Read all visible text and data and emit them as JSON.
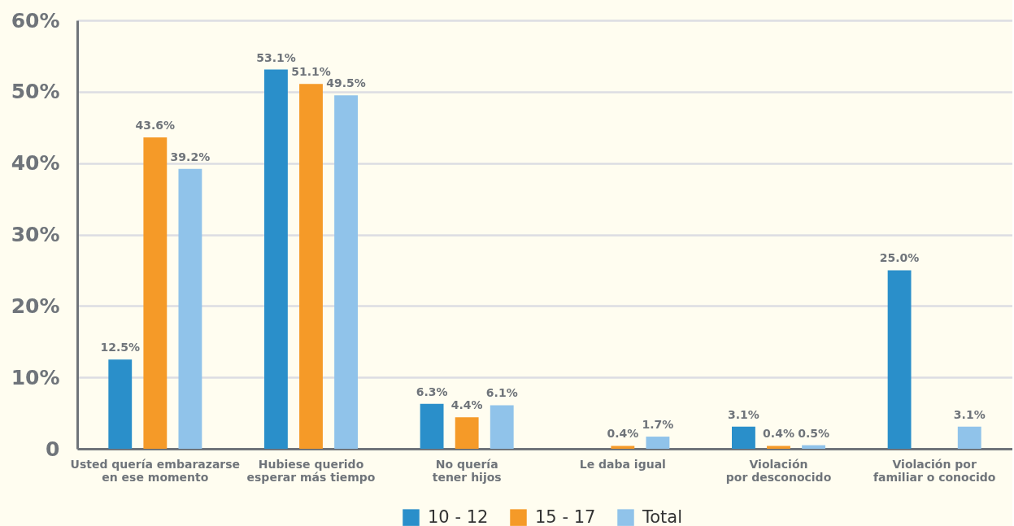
{
  "chart_data": {
    "type": "bar",
    "categories": [
      "Usted quería embarazarse\nen ese momento",
      "Hubiese querido\nesperar más tiempo",
      "No quería\ntener hijos",
      "Le daba igual",
      "Violación\npor desconocido",
      "Violación por\nfamiliar o conocido"
    ],
    "series": [
      {
        "name": "10 - 12",
        "color": "#2a8fca",
        "values": [
          12.5,
          53.1,
          6.3,
          null,
          3.1,
          25.0
        ],
        "value_labels": [
          "12.5%",
          "53.1%",
          "6.3%",
          null,
          "3.1%",
          "25.0%"
        ]
      },
      {
        "name": "15 - 17",
        "color": "#f59a28",
        "values": [
          43.6,
          51.1,
          4.4,
          0.4,
          0.4,
          null
        ],
        "value_labels": [
          "43.6%",
          "51.1%",
          "4.4%",
          "0.4%",
          "0.4%",
          null
        ]
      },
      {
        "name": "Total",
        "color": "#90c3ea",
        "values": [
          39.2,
          49.5,
          6.1,
          1.7,
          0.5,
          3.1
        ],
        "value_labels": [
          "39.2%",
          "49.5%",
          "6.1%",
          "1.7%",
          "0.5%",
          "3.1%"
        ]
      }
    ],
    "ylim": [
      0,
      60
    ],
    "yticks": [
      0,
      {
        "value": 10,
        "label": "10%"
      },
      {
        "value": 20,
        "label": "20%"
      },
      {
        "value": 30,
        "label": "30%"
      },
      {
        "value": 40,
        "label": "40%"
      },
      {
        "value": 50,
        "label": "50%"
      },
      {
        "value": 60,
        "label": "60%"
      }
    ],
    "grid": "y",
    "legend": "bottom"
  }
}
